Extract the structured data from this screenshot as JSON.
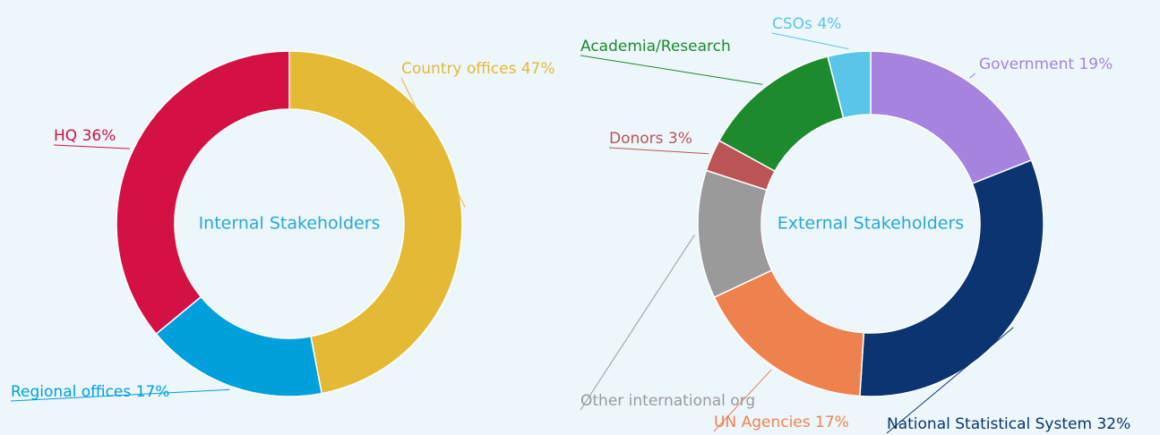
{
  "chart_data": [
    {
      "type": "donut",
      "title": "Internal Stakeholders",
      "categories": [
        "Country offices",
        "Regional offices",
        "HQ"
      ],
      "values": [
        47,
        17,
        36
      ],
      "value_labels": [
        "47%",
        "17%",
        "36%"
      ],
      "colors": [
        "#e3b935",
        "#00a0dc",
        "#d31145"
      ]
    },
    {
      "type": "donut",
      "title": "External Stakeholders",
      "categories": [
        "Government",
        "National Statistical System",
        "UN Agencies",
        "Other international org",
        "Donors",
        "Academia/Research",
        "CSOs"
      ],
      "values": [
        19,
        32,
        17,
        12,
        3,
        13,
        4
      ],
      "value_labels": [
        "19%",
        "32%",
        "17%",
        null,
        "3%",
        null,
        "4%"
      ],
      "colors": [
        "#a583de",
        "#0b3470",
        "#ee824f",
        "#9a9a9a",
        "#bb5555",
        "#1e8a2e",
        "#5bc5e9"
      ]
    }
  ]
}
